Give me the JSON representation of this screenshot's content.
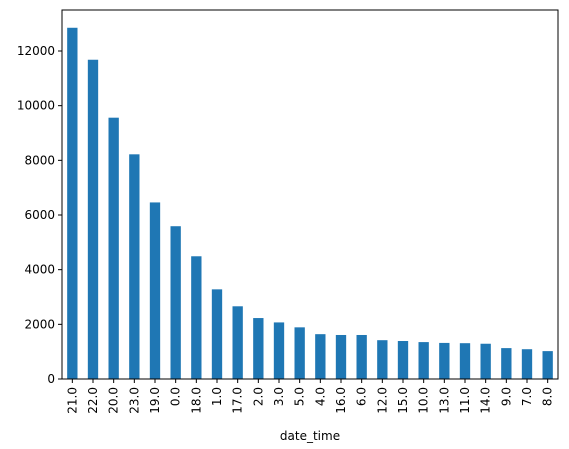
{
  "chart_data": {
    "type": "bar",
    "xlabel": "date_time",
    "ylabel": "",
    "title": "",
    "categories": [
      "21.0",
      "22.0",
      "20.0",
      "23.0",
      "19.0",
      "0.0",
      "18.0",
      "1.0",
      "17.0",
      "2.0",
      "3.0",
      "5.0",
      "4.0",
      "16.0",
      "6.0",
      "12.0",
      "15.0",
      "10.0",
      "13.0",
      "11.0",
      "14.0",
      "9.0",
      "7.0",
      "8.0"
    ],
    "values": [
      12850,
      11680,
      9560,
      8220,
      6460,
      5590,
      4490,
      3280,
      2660,
      2230,
      2070,
      1890,
      1640,
      1610,
      1610,
      1420,
      1390,
      1350,
      1320,
      1310,
      1290,
      1130,
      1090,
      1020
    ],
    "ylim": [
      0,
      13500
    ],
    "yticks": [
      0,
      2000,
      4000,
      6000,
      8000,
      10000,
      12000
    ],
    "bar_color": "#1f77b4",
    "grid": false,
    "legend": "none"
  }
}
